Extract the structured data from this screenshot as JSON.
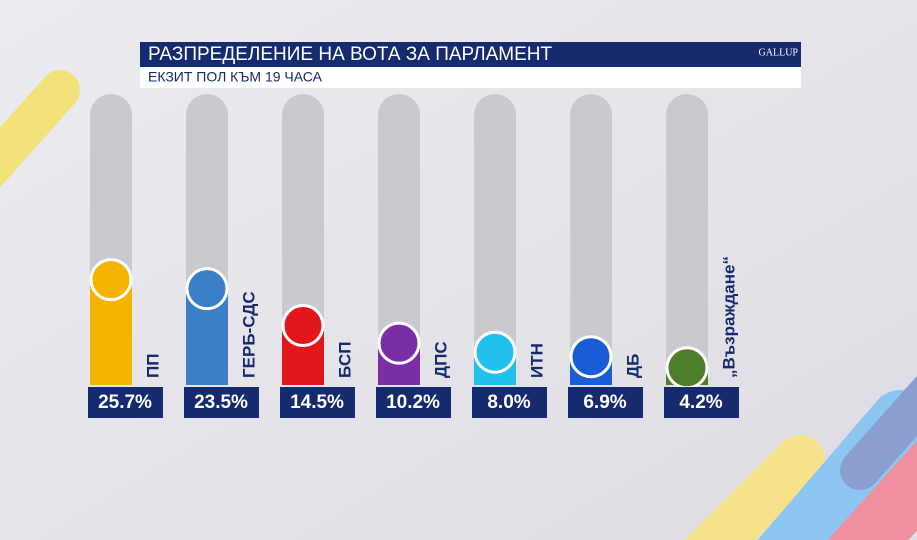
{
  "chart_data": {
    "type": "bar",
    "title": "РАЗПРЕДЕЛЕНИЕ НА ВОТА ЗА ПАРЛАМЕНТ",
    "subtitle": "ЕКЗИТ ПОЛ КЪМ 19 ЧАСА",
    "logo": "GALLUP",
    "categories": [
      "ПП",
      "ГЕРБ-СДС",
      "БСП",
      "ДПС",
      "ИТН",
      "ДБ",
      "„Възраждане“"
    ],
    "values": [
      25.7,
      23.5,
      14.5,
      10.2,
      8.0,
      6.9,
      4.2
    ],
    "value_labels": [
      "25.7%",
      "23.5%",
      "14.5%",
      "10.2%",
      "8.0%",
      "6.9%",
      "4.2%"
    ],
    "colors": [
      "#f4b400",
      "#3a7fc8",
      "#e3161c",
      "#7a2ea6",
      "#22c0ef",
      "#1a5bd6",
      "#4d7e2b"
    ]
  }
}
